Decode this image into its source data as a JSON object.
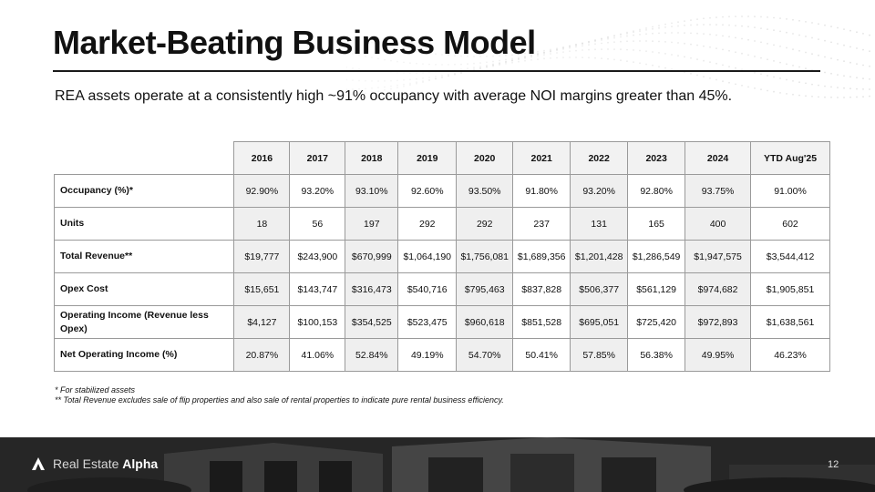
{
  "header": {
    "title": "Market-Beating Business Model",
    "subtitle": "REA assets operate at a consistently high ~91% occupancy with average NOI margins greater than 45%."
  },
  "table": {
    "columns": [
      "2016",
      "2017",
      "2018",
      "2019",
      "2020",
      "2021",
      "2022",
      "2023",
      "2024",
      "YTD Aug'25"
    ],
    "rows": [
      {
        "label": "Occupancy (%)*",
        "values": [
          "92.90%",
          "93.20%",
          "93.10%",
          "92.60%",
          "93.50%",
          "91.80%",
          "93.20%",
          "92.80%",
          "93.75%",
          "91.00%"
        ]
      },
      {
        "label": "Units",
        "values": [
          "18",
          "56",
          "197",
          "292",
          "292",
          "237",
          "131",
          "165",
          "400",
          "602"
        ]
      },
      {
        "label": "Total Revenue**",
        "values": [
          "$19,777",
          "$243,900",
          "$670,999",
          "$1,064,190",
          "$1,756,081",
          "$1,689,356",
          "$1,201,428",
          "$1,286,549",
          "$1,947,575",
          "$3,544,412"
        ]
      },
      {
        "label": "Opex Cost",
        "values": [
          "$15,651",
          "$143,747",
          "$316,473",
          "$540,716",
          "$795,463",
          "$837,828",
          "$506,377",
          "$561,129",
          "$974,682",
          "$1,905,851"
        ]
      },
      {
        "label": "Operating Income (Revenue less Opex)",
        "values": [
          "$4,127",
          "$100,153",
          "$354,525",
          "$523,475",
          "$960,618",
          "$851,528",
          "$695,051",
          "$725,420",
          "$972,893",
          "$1,638,561"
        ]
      },
      {
        "label": "Net Operating Income (%)",
        "values": [
          "20.87%",
          "41.06%",
          "52.84%",
          "49.19%",
          "54.70%",
          "50.41%",
          "57.85%",
          "56.38%",
          "49.95%",
          "46.23%"
        ]
      }
    ]
  },
  "notes": {
    "note1": "*   For stabilized assets",
    "note2": "** Total Revenue excludes sale of flip properties and also sale of rental properties to indicate pure rental business efficiency."
  },
  "footer": {
    "brand_light": "Real Estate ",
    "brand_bold": "Alpha",
    "page_number": "12"
  },
  "colors": {
    "shade": "#efefef",
    "border": "#9a9a9a",
    "footer_bg": "#2a2a2a"
  }
}
